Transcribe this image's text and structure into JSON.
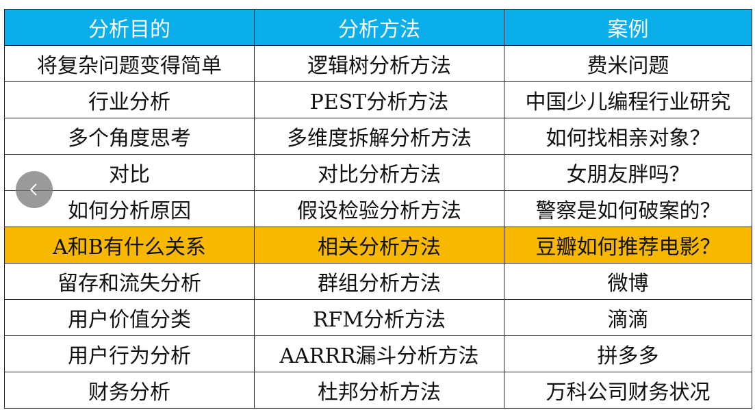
{
  "colors": {
    "header": "#0aaeea",
    "highlight": "#f8b800"
  },
  "headers": [
    "分析目的",
    "分析方法",
    "案例"
  ],
  "highlight_row": 5,
  "rows": [
    [
      "将复杂问题变得简单",
      "逻辑树分析方法",
      "费米问题"
    ],
    [
      "行业分析",
      "PEST分析方法",
      "中国少儿编程行业研究"
    ],
    [
      "多个角度思考",
      "多维度拆解分析方法",
      "如何找相亲对象？"
    ],
    [
      "对比",
      "对比分析方法",
      "女朋友胖吗？"
    ],
    [
      "如何分析原因",
      "假设检验分析方法",
      "警察是如何破案的？"
    ],
    [
      "A和B有什么关系",
      "相关分析方法",
      "豆瓣如何推荐电影？"
    ],
    [
      "留存和流失分析",
      "群组分析方法",
      "微博"
    ],
    [
      "用户价值分类",
      "RFM分析方法",
      "滴滴"
    ],
    [
      "用户行为分析",
      "AARRR漏斗分析方法",
      "拼多多"
    ],
    [
      "财务分析",
      "杜邦分析方法",
      "万科公司财务状况"
    ]
  ],
  "nav": {
    "back_icon": "chevron-left-icon"
  }
}
